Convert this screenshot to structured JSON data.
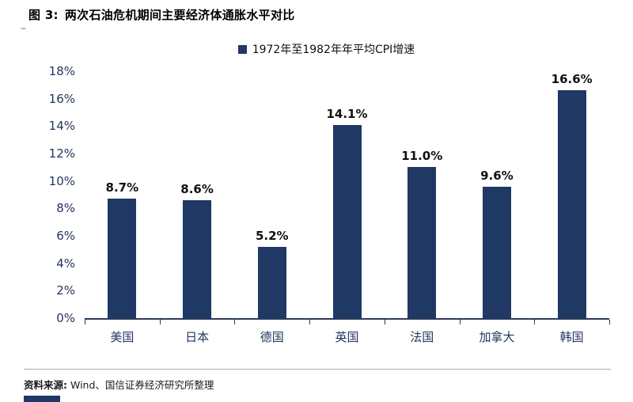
{
  "figure": {
    "label": "图 3:",
    "title": "两次石油危机期间主要经济体通胀水平对比",
    "corner_dash": "–"
  },
  "source": {
    "label": "资料来源:",
    "text": "Wind、国信证券经济研究所整理"
  },
  "colors": {
    "bar": "#1F3864",
    "axis": "#2B3A5C",
    "tick_label": "#24355E",
    "footer_block": "#1F3864"
  },
  "chart_data": {
    "type": "bar",
    "title": "两次石油危机期间主要经济体通胀水平对比",
    "legend": "1972年至1982年年平均CPI增速",
    "legend_position": "top",
    "categories": [
      "美国",
      "日本",
      "德国",
      "英国",
      "法国",
      "加拿大",
      "韩国"
    ],
    "values": [
      8.7,
      8.6,
      5.2,
      14.1,
      11.0,
      9.6,
      16.6
    ],
    "data_labels": [
      "8.7%",
      "8.6%",
      "5.2%",
      "14.1%",
      "11.0%",
      "9.6%",
      "16.6%"
    ],
    "ylim": [
      0,
      18
    ],
    "ytick_values": [
      0,
      2,
      4,
      6,
      8,
      10,
      12,
      14,
      16,
      18
    ],
    "ytick_labels": [
      "0%",
      "2%",
      "4%",
      "6%",
      "8%",
      "10%",
      "12%",
      "14%",
      "16%",
      "18%"
    ],
    "grid": false,
    "xlabel": "",
    "ylabel": ""
  }
}
